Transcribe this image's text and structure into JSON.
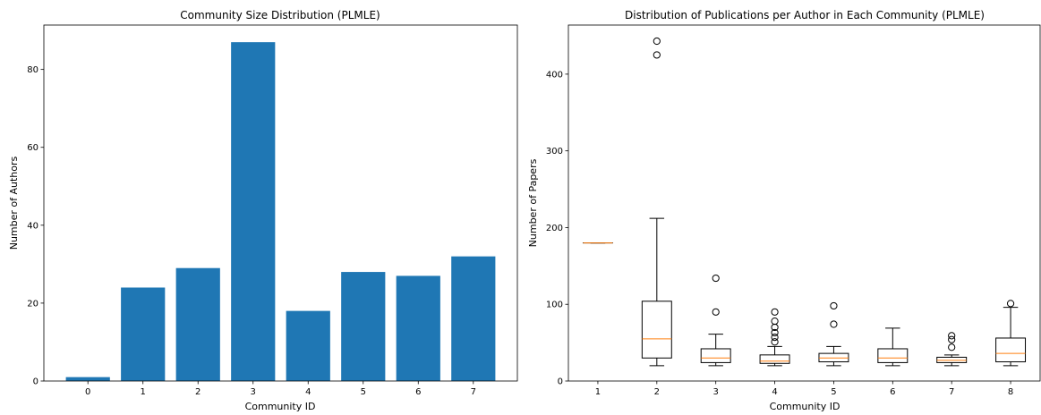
{
  "chart_data": [
    {
      "type": "bar",
      "title": "Community Size Distribution (PLMLE)",
      "xlabel": "Community ID",
      "ylabel": "Number of Authors",
      "categories": [
        "0",
        "1",
        "2",
        "3",
        "4",
        "5",
        "6",
        "7"
      ],
      "values": [
        1,
        24,
        29,
        87,
        18,
        28,
        27,
        32
      ],
      "yticks": [
        0,
        20,
        40,
        60,
        80
      ],
      "ylim": [
        0,
        91.4
      ],
      "color": "#1f77b4",
      "grid": false
    },
    {
      "type": "boxplot",
      "title": "Distribution of Publications per Author in Each Community (PLMLE)",
      "xlabel": "Community ID",
      "ylabel": "Number of Papers",
      "categories": [
        "1",
        "2",
        "3",
        "4",
        "5",
        "6",
        "7",
        "8"
      ],
      "yticks": [
        0,
        100,
        200,
        300,
        400
      ],
      "ylim": [
        0,
        464
      ],
      "median_color": "#ff7f0e",
      "grid": false,
      "boxes": [
        {
          "whislo": 180,
          "q1": 180,
          "med": 180,
          "q3": 180,
          "whishi": 180,
          "fliers": []
        },
        {
          "whislo": 20,
          "q1": 30,
          "med": 55,
          "q3": 104,
          "whishi": 212,
          "fliers": [
            425,
            443
          ]
        },
        {
          "whislo": 20,
          "q1": 24,
          "med": 30,
          "q3": 42,
          "whishi": 61,
          "fliers": [
            90,
            134
          ]
        },
        {
          "whislo": 20,
          "q1": 23,
          "med": 26,
          "q3": 34,
          "whishi": 45,
          "fliers": [
            51,
            57,
            63,
            70,
            78,
            90
          ]
        },
        {
          "whislo": 20,
          "q1": 25,
          "med": 30,
          "q3": 36,
          "whishi": 45,
          "fliers": [
            74,
            98
          ]
        },
        {
          "whislo": 20,
          "q1": 24,
          "med": 30,
          "q3": 42,
          "whishi": 69,
          "fliers": []
        },
        {
          "whislo": 20,
          "q1": 24,
          "med": 27,
          "q3": 31,
          "whishi": 34,
          "fliers": [
            44,
            54,
            59
          ]
        },
        {
          "whislo": 20,
          "q1": 25,
          "med": 36,
          "q3": 56,
          "whishi": 96,
          "fliers": [
            101
          ]
        }
      ]
    }
  ]
}
